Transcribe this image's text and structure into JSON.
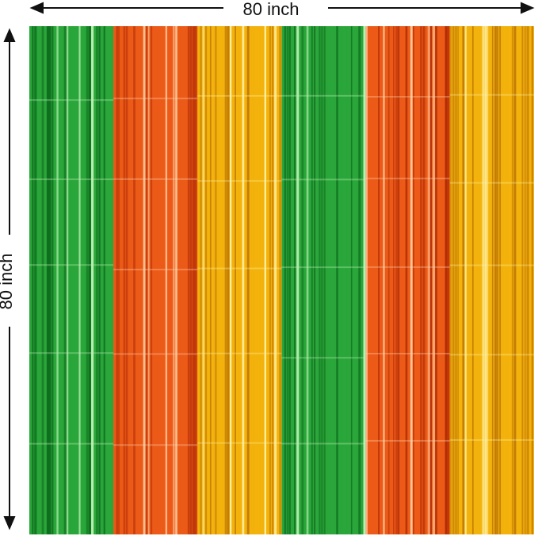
{
  "dimensions": {
    "width_label": "80 inch",
    "height_label": "80 inch"
  },
  "curtain": {
    "panels": [
      {
        "name": "green",
        "color": "#2aa63a",
        "dark": "#0f6e1e",
        "light": "#bff2b8"
      },
      {
        "name": "orange",
        "color": "#ec5a18",
        "dark": "#b32e06",
        "light": "#ffd3a8"
      },
      {
        "name": "gold",
        "color": "#f3b20c",
        "dark": "#c27b05",
        "light": "#fff0a0"
      },
      {
        "name": "green",
        "color": "#2aa63a",
        "dark": "#0f6e1e",
        "light": "#bff2b8"
      },
      {
        "name": "orange",
        "color": "#ec5a18",
        "dark": "#b32e06",
        "light": "#ffd3a8"
      },
      {
        "name": "gold",
        "color": "#f3b20c",
        "dark": "#c27b05",
        "light": "#fff0a0"
      }
    ]
  }
}
